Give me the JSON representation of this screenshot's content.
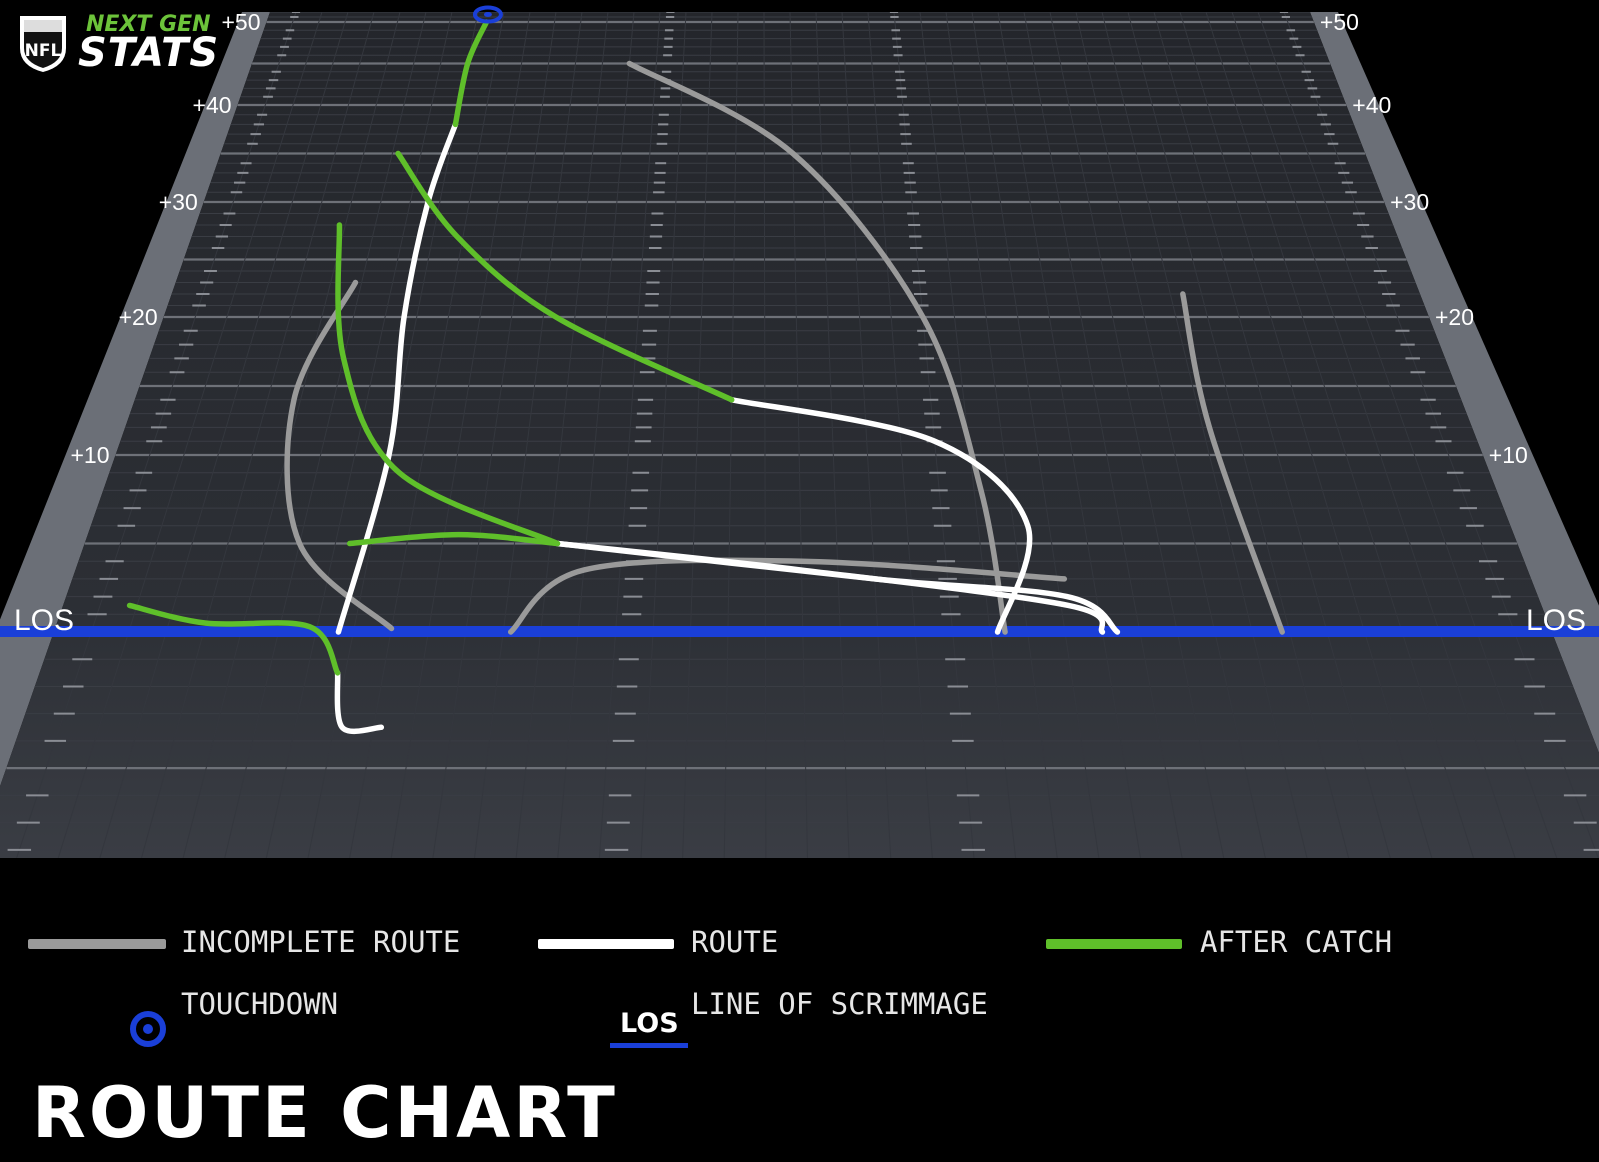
{
  "brand": {
    "league": "NFL",
    "line1": "NEXT GEN",
    "line2": "STATS"
  },
  "title": "ROUTE CHART",
  "legend": {
    "incomplete": "INCOMPLETE ROUTE",
    "route": "ROUTE",
    "after_catch": "AFTER CATCH",
    "touchdown": "TOUCHDOWN",
    "los_abbrev": "LOS",
    "los": "LINE OF SCRIMMAGE"
  },
  "colors": {
    "background": "#000000",
    "field": "#2a2c31",
    "sideline": "#6b6f77",
    "los_line": "#1a3fd8",
    "incomplete_route": "#9a9a9a",
    "route": "#ffffff",
    "after_catch": "#5fbf2a",
    "touchdown": "#1a3fd8"
  },
  "chart_data": {
    "type": "route-chart",
    "y_unit": "yards relative to line of scrimmage",
    "ylim": [
      -8,
      52
    ],
    "yard_labels": [
      "+50",
      "+40",
      "+30",
      "+20",
      "+10",
      "LOS"
    ],
    "yard_values": [
      50,
      40,
      30,
      20,
      10,
      0
    ],
    "x_unit": "field width fraction (0 = left sideline, 1 = right sideline)",
    "routes": [
      {
        "kind": "route",
        "points": [
          [
            0.19,
            0
          ],
          [
            0.2,
            10
          ],
          [
            0.19,
            20
          ],
          [
            0.19,
            30
          ],
          [
            0.2,
            38
          ]
        ]
      },
      {
        "kind": "after_catch",
        "points": [
          [
            0.2,
            38
          ],
          [
            0.2,
            45
          ],
          [
            0.21,
            50
          ]
        ]
      },
      {
        "kind": "after_catch",
        "points": [
          [
            0.155,
            35
          ],
          [
            0.22,
            27
          ],
          [
            0.31,
            20
          ],
          [
            0.45,
            14
          ]
        ]
      },
      {
        "kind": "route",
        "points": [
          [
            0.45,
            14
          ],
          [
            0.6,
            11
          ],
          [
            0.66,
            6
          ],
          [
            0.63,
            0
          ]
        ]
      },
      {
        "kind": "after_catch",
        "points": [
          [
            0.12,
            28
          ],
          [
            0.15,
            17
          ],
          [
            0.21,
            9
          ],
          [
            0.33,
            5
          ]
        ]
      },
      {
        "kind": "route",
        "points": [
          [
            0.33,
            5
          ],
          [
            0.55,
            3
          ],
          [
            0.68,
            2
          ],
          [
            0.71,
            0
          ]
        ]
      },
      {
        "kind": "after_catch",
        "points": [
          [
            0.185,
            5
          ],
          [
            0.26,
            5.5
          ],
          [
            0.33,
            5
          ]
        ]
      },
      {
        "kind": "route",
        "points": [
          [
            0.33,
            5
          ],
          [
            0.5,
            3.5
          ],
          [
            0.68,
            1.5
          ],
          [
            0.7,
            0
          ]
        ]
      },
      {
        "kind": "after_catch",
        "points": [
          [
            0.045,
            1.5
          ],
          [
            0.1,
            0.5
          ],
          [
            0.17,
            0.3
          ],
          [
            0.195,
            -1.5
          ]
        ]
      },
      {
        "kind": "route",
        "points": [
          [
            0.195,
            -1.5
          ],
          [
            0.205,
            -3.5
          ],
          [
            0.23,
            -3.5
          ]
        ]
      },
      {
        "kind": "incomplete",
        "points": [
          [
            0.145,
            23
          ],
          [
            0.12,
            14
          ],
          [
            0.15,
            5
          ],
          [
            0.225,
            0.2
          ]
        ]
      },
      {
        "kind": "incomplete",
        "points": [
          [
            0.35,
            45
          ],
          [
            0.5,
            35
          ],
          [
            0.6,
            20
          ],
          [
            0.63,
            8
          ],
          [
            0.635,
            0
          ]
        ]
      },
      {
        "kind": "incomplete",
        "points": [
          [
            0.305,
            0
          ],
          [
            0.35,
            3.5
          ],
          [
            0.5,
            4
          ],
          [
            0.68,
            3
          ]
        ]
      },
      {
        "kind": "incomplete",
        "points": [
          [
            0.81,
            22
          ],
          [
            0.805,
            12
          ],
          [
            0.82,
            0
          ]
        ]
      }
    ],
    "touchdown_markers": [
      [
        0.21,
        51.5
      ]
    ]
  }
}
